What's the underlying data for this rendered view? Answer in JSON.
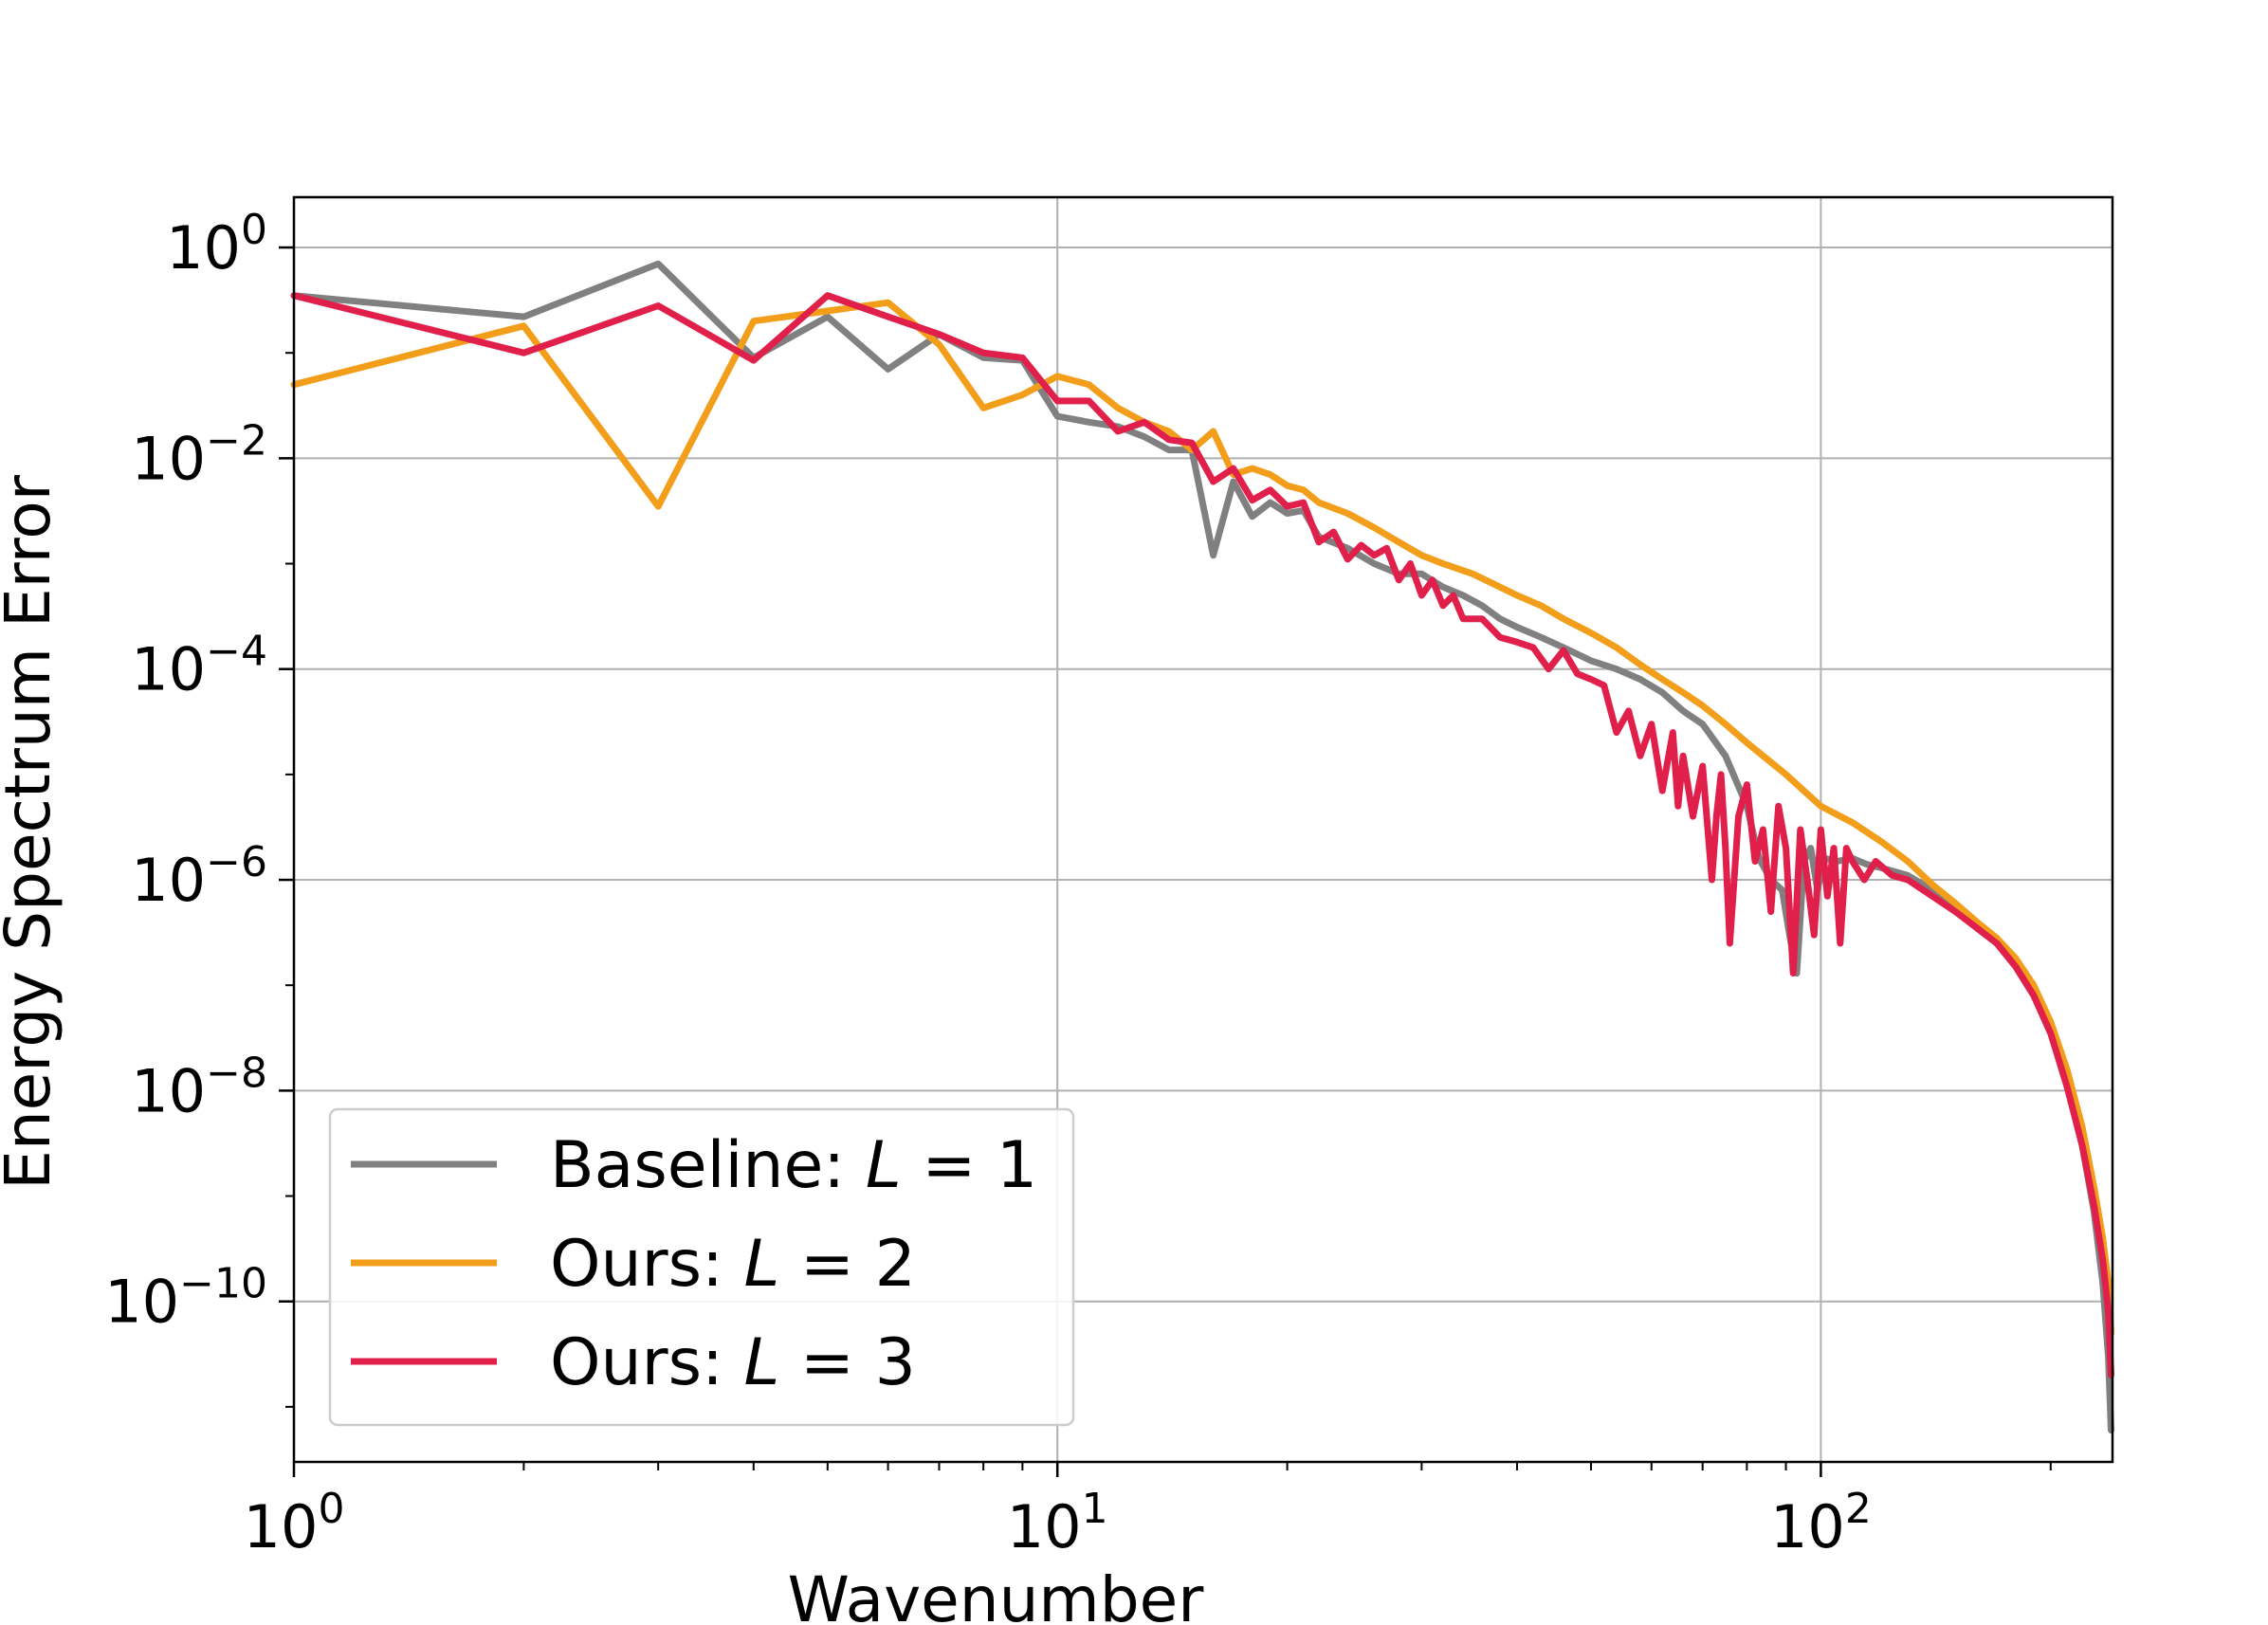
{
  "chart_data": {
    "type": "line",
    "xlabel": "Wavenumber",
    "ylabel": "Energy Spectrum Error",
    "xscale": "log",
    "yscale": "log",
    "xlim": [
      1,
      241
    ],
    "ylim": [
      3e-12,
      3
    ],
    "grid": true,
    "legend_position": "lower-left",
    "x_ticks": [
      {
        "value": 1,
        "base": "10",
        "exp": "0"
      },
      {
        "value": 10,
        "base": "10",
        "exp": "1"
      },
      {
        "value": 100,
        "base": "10",
        "exp": "2"
      }
    ],
    "y_ticks": [
      {
        "value": 1,
        "base": "10",
        "exp": "0"
      },
      {
        "value": 0.01,
        "base": "10",
        "exp": "−2"
      },
      {
        "value": 0.0001,
        "base": "10",
        "exp": "−4"
      },
      {
        "value": 1e-06,
        "base": "10",
        "exp": "−6"
      },
      {
        "value": 1e-08,
        "base": "10",
        "exp": "−8"
      },
      {
        "value": 1e-10,
        "base": "10",
        "exp": "−10"
      }
    ],
    "series": [
      {
        "name": "Baseline: L = 1",
        "label_prefix": "Baseline: ",
        "label_var": "L",
        "label_rest": " = 1",
        "color": "#808080",
        "points": [
          [
            1,
            0.35
          ],
          [
            2,
            0.22
          ],
          [
            3,
            0.7
          ],
          [
            4,
            0.09
          ],
          [
            5,
            0.22
          ],
          [
            6,
            0.07
          ],
          [
            7,
            0.15
          ],
          [
            8,
            0.09
          ],
          [
            9,
            0.085
          ],
          [
            10,
            0.025
          ],
          [
            11,
            0.022
          ],
          [
            12,
            0.02
          ],
          [
            13,
            0.016
          ],
          [
            14,
            0.012
          ],
          [
            15,
            0.012
          ],
          [
            16,
            0.0012
          ],
          [
            17,
            0.006
          ],
          [
            18,
            0.0028
          ],
          [
            19,
            0.0038
          ],
          [
            20,
            0.003
          ],
          [
            21,
            0.0032
          ],
          [
            22,
            0.0018
          ],
          [
            24,
            0.0014
          ],
          [
            26,
            0.001
          ],
          [
            28,
            0.0008
          ],
          [
            30,
            0.0008
          ],
          [
            32,
            0.0006
          ],
          [
            34,
            0.0005
          ],
          [
            36,
            0.0004
          ],
          [
            38,
            0.0003
          ],
          [
            40,
            0.00025
          ],
          [
            43,
            0.0002
          ],
          [
            46,
            0.00016
          ],
          [
            50,
            0.00012
          ],
          [
            54,
            0.0001
          ],
          [
            58,
            8e-05
          ],
          [
            62,
            6e-05
          ],
          [
            66,
            4e-05
          ],
          [
            70,
            3e-05
          ],
          [
            75,
            1.5e-05
          ],
          [
            80,
            5e-06
          ],
          [
            83,
            1.6e-06
          ],
          [
            86,
            1e-06
          ],
          [
            89,
            8e-07
          ],
          [
            91,
            3e-07
          ],
          [
            93,
            1.3e-07
          ],
          [
            95,
            1.5e-06
          ],
          [
            97,
            2e-06
          ],
          [
            99,
            8e-07
          ],
          [
            101,
            1.6e-06
          ],
          [
            105,
            1.5e-06
          ],
          [
            110,
            1.6e-06
          ],
          [
            115,
            1.4e-06
          ],
          [
            120,
            1.3e-06
          ],
          [
            130,
            1.1e-06
          ],
          [
            140,
            8e-07
          ],
          [
            150,
            5.5e-07
          ],
          [
            160,
            3.5e-07
          ],
          [
            170,
            2.5e-07
          ],
          [
            180,
            1.5e-07
          ],
          [
            190,
            8e-08
          ],
          [
            200,
            3.5e-08
          ],
          [
            210,
            1.2e-08
          ],
          [
            220,
            3e-09
          ],
          [
            228,
            7e-10
          ],
          [
            234,
            1.5e-10
          ],
          [
            238,
            3e-11
          ],
          [
            240,
            6e-12
          ]
        ]
      },
      {
        "name": "Ours: L = 2",
        "label_prefix": "Ours: ",
        "label_var": "L",
        "label_rest": " = 2",
        "color": "#F29E1B",
        "points": [
          [
            1,
            0.05
          ],
          [
            2,
            0.18
          ],
          [
            3,
            0.0035
          ],
          [
            4,
            0.2
          ],
          [
            5,
            0.25
          ],
          [
            6,
            0.3
          ],
          [
            7,
            0.12
          ],
          [
            8,
            0.03
          ],
          [
            9,
            0.04
          ],
          [
            10,
            0.06
          ],
          [
            11,
            0.05
          ],
          [
            12,
            0.03
          ],
          [
            13,
            0.022
          ],
          [
            14,
            0.018
          ],
          [
            15,
            0.012
          ],
          [
            16,
            0.018
          ],
          [
            17,
            0.007
          ],
          [
            18,
            0.008
          ],
          [
            19,
            0.007
          ],
          [
            20,
            0.0055
          ],
          [
            21,
            0.005
          ],
          [
            22,
            0.0038
          ],
          [
            24,
            0.003
          ],
          [
            26,
            0.0022
          ],
          [
            28,
            0.0016
          ],
          [
            30,
            0.0012
          ],
          [
            32,
            0.001
          ],
          [
            35,
            0.0008
          ],
          [
            38,
            0.0006
          ],
          [
            40,
            0.0005
          ],
          [
            43,
            0.0004
          ],
          [
            46,
            0.0003
          ],
          [
            50,
            0.00022
          ],
          [
            54,
            0.00016
          ],
          [
            58,
            0.00011
          ],
          [
            62,
            8e-05
          ],
          [
            66,
            6e-05
          ],
          [
            70,
            4.5e-05
          ],
          [
            75,
            3e-05
          ],
          [
            80,
            2e-05
          ],
          [
            85,
            1.4e-05
          ],
          [
            90,
            1e-05
          ],
          [
            95,
            7e-06
          ],
          [
            100,
            5e-06
          ],
          [
            110,
            3.5e-06
          ],
          [
            120,
            2.3e-06
          ],
          [
            130,
            1.5e-06
          ],
          [
            140,
            9e-07
          ],
          [
            150,
            6e-07
          ],
          [
            160,
            4e-07
          ],
          [
            170,
            2.8e-07
          ],
          [
            180,
            1.8e-07
          ],
          [
            190,
            1e-07
          ],
          [
            200,
            4.5e-08
          ],
          [
            210,
            1.6e-08
          ],
          [
            220,
            4.5e-09
          ],
          [
            228,
            1.2e-09
          ],
          [
            234,
            4e-10
          ],
          [
            238,
            1.5e-10
          ],
          [
            240,
            5e-11
          ]
        ]
      },
      {
        "name": "Ours: L = 3",
        "label_prefix": "Ours: ",
        "label_var": "L",
        "label_rest": " = 3",
        "color": "#E0204A",
        "points": [
          [
            1,
            0.35
          ],
          [
            2,
            0.1
          ],
          [
            3,
            0.28
          ],
          [
            4,
            0.085
          ],
          [
            5,
            0.35
          ],
          [
            6,
            0.22
          ],
          [
            7,
            0.15
          ],
          [
            8,
            0.1
          ],
          [
            9,
            0.09
          ],
          [
            10,
            0.035
          ],
          [
            11,
            0.035
          ],
          [
            12,
            0.018
          ],
          [
            13,
            0.022
          ],
          [
            14,
            0.015
          ],
          [
            15,
            0.014
          ],
          [
            16,
            0.006
          ],
          [
            17,
            0.008
          ],
          [
            18,
            0.004
          ],
          [
            19,
            0.005
          ],
          [
            20,
            0.0035
          ],
          [
            21,
            0.0038
          ],
          [
            22,
            0.0016
          ],
          [
            23,
            0.002
          ],
          [
            24,
            0.0011
          ],
          [
            25,
            0.0015
          ],
          [
            26,
            0.0012
          ],
          [
            27,
            0.0014
          ],
          [
            28,
            0.0007
          ],
          [
            29,
            0.001
          ],
          [
            30,
            0.0005
          ],
          [
            31,
            0.0007
          ],
          [
            32,
            0.0004
          ],
          [
            33,
            0.0005
          ],
          [
            34,
            0.0003
          ],
          [
            36,
            0.0003
          ],
          [
            38,
            0.0002
          ],
          [
            40,
            0.00018
          ],
          [
            42,
            0.00016
          ],
          [
            44,
            0.0001
          ],
          [
            46,
            0.00015
          ],
          [
            48,
            9e-05
          ],
          [
            50,
            8e-05
          ],
          [
            52,
            7e-05
          ],
          [
            54,
            2.5e-05
          ],
          [
            56,
            4e-05
          ],
          [
            58,
            1.5e-05
          ],
          [
            60,
            3e-05
          ],
          [
            62,
            7e-06
          ],
          [
            64,
            2.5e-05
          ],
          [
            65,
            5e-06
          ],
          [
            66,
            1.5e-05
          ],
          [
            68,
            4e-06
          ],
          [
            70,
            1.2e-05
          ],
          [
            72,
            1e-06
          ],
          [
            73,
            4e-06
          ],
          [
            74,
            1e-05
          ],
          [
            75,
            2e-06
          ],
          [
            76,
            2.5e-07
          ],
          [
            78,
            4e-06
          ],
          [
            80,
            8e-06
          ],
          [
            82,
            1.5e-06
          ],
          [
            84,
            3e-06
          ],
          [
            86,
            5e-07
          ],
          [
            88,
            5e-06
          ],
          [
            90,
            2e-06
          ],
          [
            92,
            1.3e-07
          ],
          [
            94,
            3e-06
          ],
          [
            96,
            1e-06
          ],
          [
            98,
            3e-07
          ],
          [
            100,
            3e-06
          ],
          [
            102,
            7e-07
          ],
          [
            104,
            2e-06
          ],
          [
            106,
            2.5e-07
          ],
          [
            108,
            2e-06
          ],
          [
            110,
            1.5e-06
          ],
          [
            114,
            1e-06
          ],
          [
            118,
            1.5e-06
          ],
          [
            124,
            1.1e-06
          ],
          [
            130,
            1e-06
          ],
          [
            140,
            7e-07
          ],
          [
            150,
            5e-07
          ],
          [
            160,
            3.5e-07
          ],
          [
            170,
            2.5e-07
          ],
          [
            180,
            1.5e-07
          ],
          [
            190,
            8e-08
          ],
          [
            200,
            3.5e-08
          ],
          [
            210,
            1.1e-08
          ],
          [
            220,
            3e-09
          ],
          [
            228,
            8e-10
          ],
          [
            234,
            2.5e-10
          ],
          [
            238,
            8e-11
          ],
          [
            240,
            2e-11
          ]
        ]
      }
    ]
  }
}
